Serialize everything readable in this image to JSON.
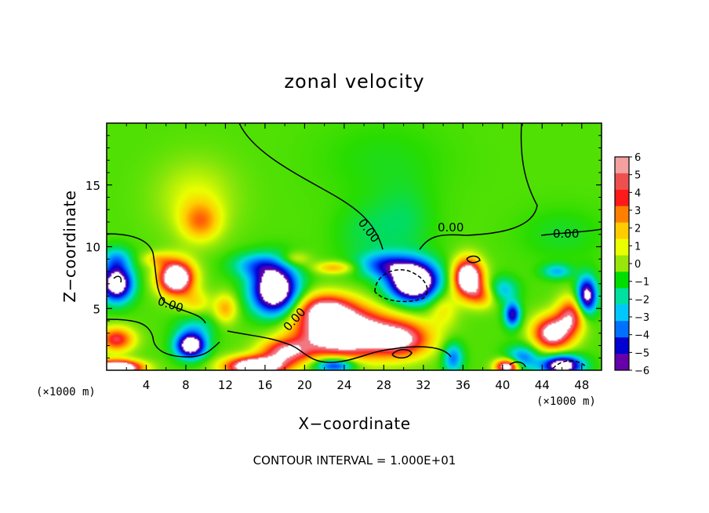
{
  "chart_data": {
    "type": "heatmap",
    "title": "zonal velocity",
    "xlabel": "X−coordinate",
    "ylabel": "Z−coordinate",
    "x_unit": "(×1000 m)",
    "y_unit": "(×1000 m)",
    "xlim": [
      0,
      50
    ],
    "ylim": [
      0,
      20
    ],
    "x_ticks": [
      4,
      8,
      12,
      16,
      20,
      24,
      28,
      32,
      36,
      40,
      44,
      48
    ],
    "y_ticks": [
      5,
      10,
      15
    ],
    "colorbar": {
      "min": -6,
      "max": 6,
      "ticks": [
        6,
        5,
        4,
        3,
        2,
        1,
        0,
        -1,
        -2,
        -3,
        -4,
        -5,
        -6
      ],
      "tick_labels": [
        "6",
        "5",
        "4",
        "3",
        "2",
        "1",
        "0",
        "−1",
        "−2",
        "−3",
        "−4",
        "−5",
        "−6"
      ],
      "colors": [
        "#f3a0a0",
        "#ee5050",
        "#ff1a1a",
        "#ff8000",
        "#ffcc00",
        "#eaff00",
        "#9ae60a",
        "#00dd00",
        "#00e0a0",
        "#00c8ff",
        "#0070ff",
        "#0000d0",
        "#6600aa"
      ]
    },
    "contour_interval": "CONTOUR INTERVAL = 1.000E+01",
    "contour_labels": [
      "0.00",
      "0.00",
      "0.00",
      "0.00",
      "0.00"
    ],
    "out_of_range_color": "#ffffff",
    "field_blobs": [
      {
        "x": 9.5,
        "z": 12,
        "v": 3,
        "sx": 2.0,
        "sz": 1.6
      },
      {
        "x": 9,
        "z": 14,
        "v": 1.5,
        "sx": 4,
        "sz": 3
      },
      {
        "x": 26,
        "z": 11,
        "v": -1,
        "sx": 3,
        "sz": 2.5
      },
      {
        "x": 30,
        "z": 12,
        "v": -1.2,
        "sx": 3,
        "sz": 3
      },
      {
        "x": 28,
        "z": 17,
        "v": -0.6,
        "sx": 6,
        "sz": 3
      },
      {
        "x": 46,
        "z": 11,
        "v": -0.8,
        "sx": 4,
        "sz": 2
      },
      {
        "x": 1,
        "z": 7,
        "v": -9,
        "sx": 1.6,
        "sz": 1.4
      },
      {
        "x": 1,
        "z": 9,
        "v": -3,
        "sx": 1.5,
        "sz": 1
      },
      {
        "x": 7,
        "z": 7.5,
        "v": 9,
        "sx": 1.8,
        "sz": 1.4
      },
      {
        "x": 9,
        "z": 5.5,
        "v": 2,
        "sx": 1.5,
        "sz": 1
      },
      {
        "x": 8.5,
        "z": 2,
        "v": -9,
        "sx": 1.5,
        "sz": 1
      },
      {
        "x": 9,
        "z": 3.5,
        "v": -2,
        "sx": 2,
        "sz": 1
      },
      {
        "x": 17,
        "z": 6.5,
        "v": -10,
        "sx": 2.3,
        "sz": 2
      },
      {
        "x": 15,
        "z": 8.5,
        "v": -3,
        "sx": 2.5,
        "sz": 1
      },
      {
        "x": 12,
        "z": 5,
        "v": 3,
        "sx": 1.2,
        "sz": 1.2
      },
      {
        "x": 31,
        "z": 7.2,
        "v": -11,
        "sx": 2.5,
        "sz": 1.6
      },
      {
        "x": 28,
        "z": 8.5,
        "v": -4,
        "sx": 2.5,
        "sz": 1
      },
      {
        "x": 23,
        "z": 8.3,
        "v": 3,
        "sx": 2,
        "sz": 0.5
      },
      {
        "x": 24,
        "z": 3,
        "v": 9,
        "sx": 5,
        "sz": 2
      },
      {
        "x": 22,
        "z": 5,
        "v": 5,
        "sx": 3,
        "sz": 1.3
      },
      {
        "x": 30,
        "z": 2.5,
        "v": 5,
        "sx": 3,
        "sz": 1.5
      },
      {
        "x": 18,
        "z": 1.5,
        "v": 5,
        "sx": 2.5,
        "sz": 1
      },
      {
        "x": 15,
        "z": 0.3,
        "v": 9,
        "sx": 3,
        "sz": 0.8
      },
      {
        "x": 36.5,
        "z": 7.5,
        "v": 9,
        "sx": 1.5,
        "sz": 1.5
      },
      {
        "x": 38,
        "z": 6,
        "v": 3,
        "sx": 1.5,
        "sz": 1
      },
      {
        "x": 40,
        "z": 6.5,
        "v": -3,
        "sx": 1.5,
        "sz": 1
      },
      {
        "x": 41,
        "z": 4.5,
        "v": -6,
        "sx": 0.8,
        "sz": 1
      },
      {
        "x": 45,
        "z": 3,
        "v": 7,
        "sx": 2,
        "sz": 1.4
      },
      {
        "x": 45.5,
        "z": 8,
        "v": -3,
        "sx": 1.5,
        "sz": 0.6
      },
      {
        "x": 42,
        "z": 1,
        "v": -4,
        "sx": 1.6,
        "sz": 1
      },
      {
        "x": 46,
        "z": 0.4,
        "v": -9,
        "sx": 2,
        "sz": 0.8
      },
      {
        "x": 48.5,
        "z": 6,
        "v": -8,
        "sx": 1,
        "sz": 1.5
      },
      {
        "x": 1,
        "z": 2.5,
        "v": 5,
        "sx": 1.8,
        "sz": 1
      },
      {
        "x": 1,
        "z": 0.2,
        "v": 10,
        "sx": 2.5,
        "sz": 0.6
      },
      {
        "x": 35,
        "z": 1,
        "v": -4,
        "sx": 1,
        "sz": 1.2
      },
      {
        "x": 40.5,
        "z": 0.3,
        "v": 8,
        "sx": 1.2,
        "sz": 0.6
      },
      {
        "x": 23,
        "z": 0.4,
        "v": -6,
        "sx": 2,
        "sz": 0.6
      },
      {
        "x": 47,
        "z": 4.5,
        "v": 5,
        "sx": 1.5,
        "sz": 1.5
      },
      {
        "x": 34,
        "z": 5,
        "v": 2,
        "sx": 1.5,
        "sz": 1.5
      },
      {
        "x": 5,
        "z": 9,
        "v": 2,
        "sx": 1.5,
        "sz": 0.6
      },
      {
        "x": 19,
        "z": 9,
        "v": 2,
        "sx": 1.5,
        "sz": 0.6
      }
    ]
  }
}
